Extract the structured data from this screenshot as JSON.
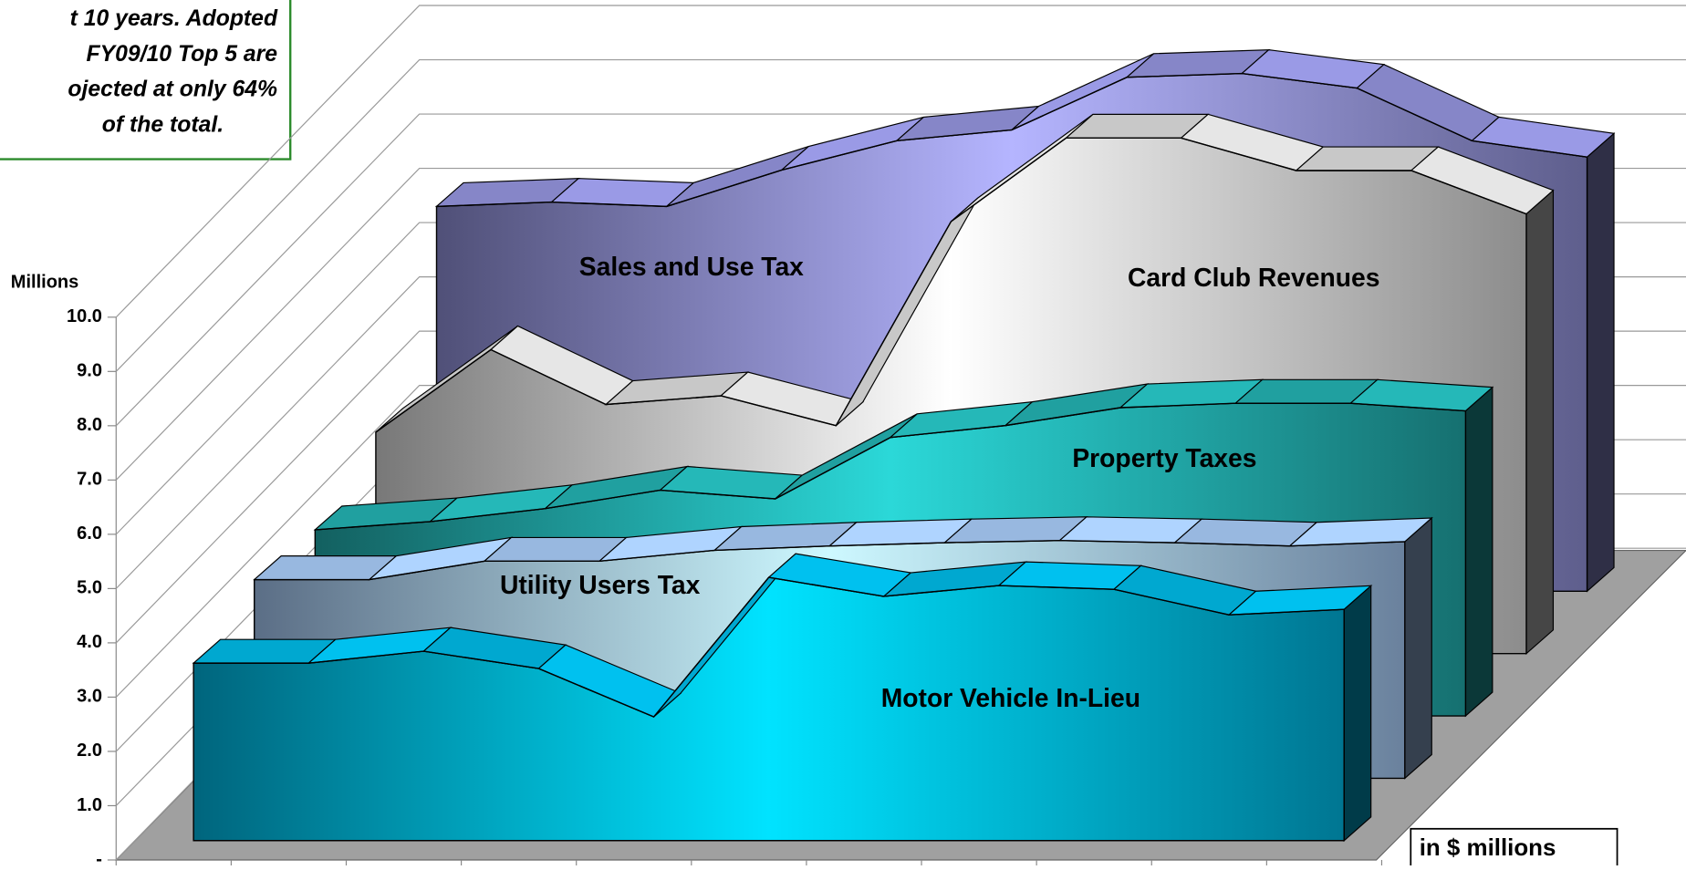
{
  "chart_data": {
    "type": "area3d",
    "note_lines": [
      "t 10 years. Adopted",
      "FY09/10 Top 5 are",
      "ojected at only 64%",
      "of the total."
    ],
    "y_axis_label": "Millions",
    "unit_box": "in $ millions",
    "categories": [
      null,
      null,
      null,
      null,
      null,
      null,
      null,
      null,
      null,
      null,
      null
    ],
    "ylim": [
      0,
      10
    ],
    "yticks": [
      {
        "value": 0,
        "label": "-"
      },
      {
        "value": 1,
        "label": "1.0"
      },
      {
        "value": 2,
        "label": "2.0"
      },
      {
        "value": 3,
        "label": "3.0"
      },
      {
        "value": 4,
        "label": "4.0"
      },
      {
        "value": 5,
        "label": "5.0"
      },
      {
        "value": 6,
        "label": "6.0"
      },
      {
        "value": 7,
        "label": "7.0"
      },
      {
        "value": 8,
        "label": "8.0"
      },
      {
        "value": 9,
        "label": "9.0"
      },
      {
        "value": 10,
        "label": "10.0"
      }
    ],
    "grid": true,
    "series": [
      {
        "name": "Sales and Use Tax",
        "color": "#8686c8",
        "values": [
          7.09,
          7.17,
          7.09,
          7.76,
          8.3,
          8.5,
          9.47,
          9.54,
          9.27,
          8.3,
          8.0
        ]
      },
      {
        "name": "Card Club Revenues",
        "color": "#c8c8c8",
        "values": [
          4.08,
          5.6,
          4.59,
          4.75,
          4.2,
          7.96,
          9.5,
          9.5,
          8.9,
          8.9,
          8.1
        ]
      },
      {
        "name": "Property Taxes",
        "color": "#20a0a0",
        "values": [
          3.43,
          3.58,
          3.82,
          4.16,
          4.0,
          5.13,
          5.35,
          5.68,
          5.76,
          5.76,
          5.62
        ]
      },
      {
        "name": "Utility Users Tax",
        "color": "#98b8e0",
        "values": [
          3.66,
          3.66,
          4.0,
          4.0,
          4.2,
          4.28,
          4.34,
          4.38,
          4.34,
          4.28,
          4.36
        ]
      },
      {
        "name": "Motor Vehicle In-Lieu",
        "color": "#00a8d0",
        "values": [
          3.27,
          3.27,
          3.49,
          3.17,
          2.28,
          4.85,
          4.5,
          4.7,
          4.63,
          4.16,
          4.26
        ]
      }
    ]
  }
}
